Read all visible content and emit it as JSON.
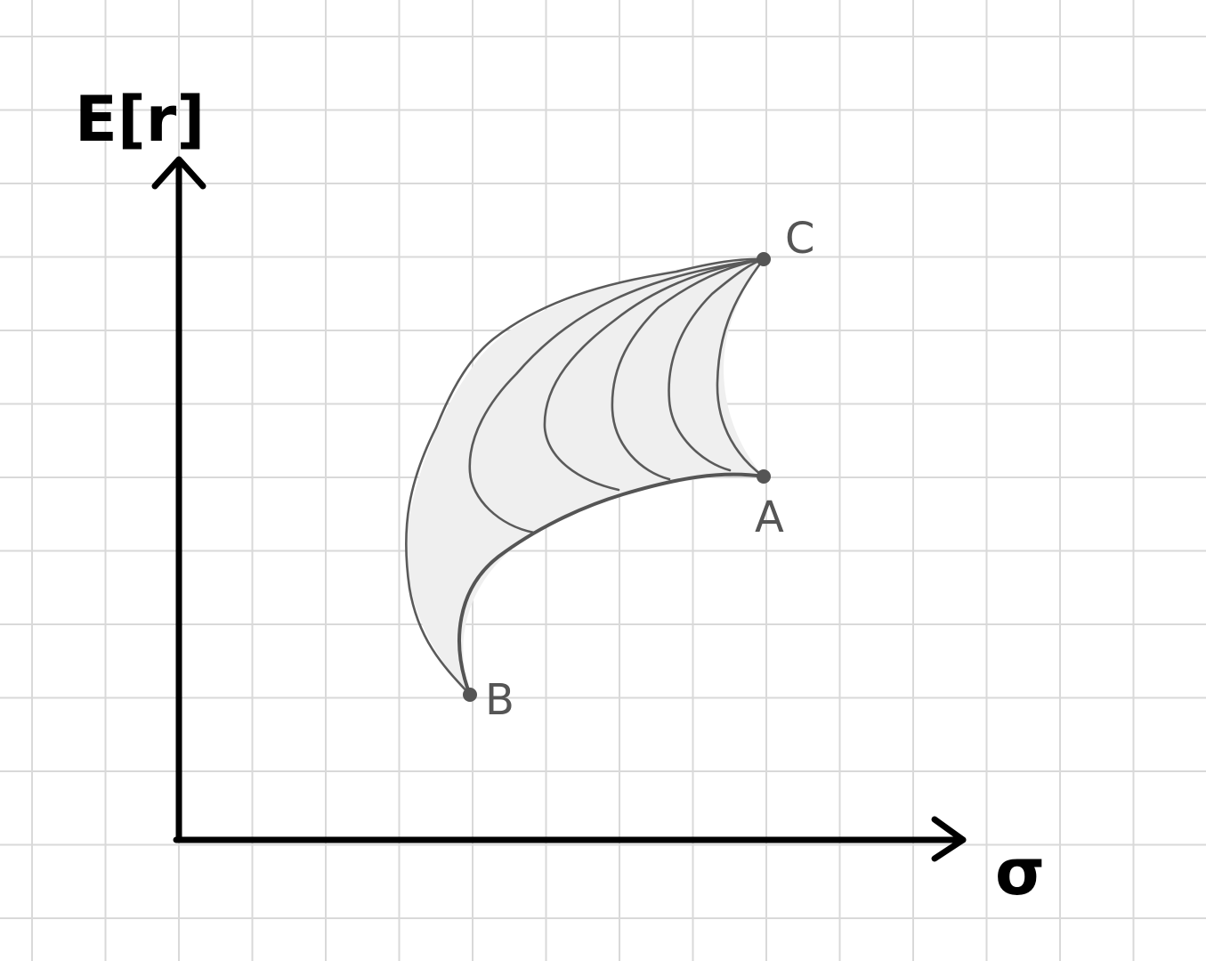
{
  "axes": {
    "y_label": "E[r]",
    "x_label": "σ"
  },
  "points": {
    "a_label": "A",
    "b_label": "B",
    "c_label": "C"
  },
  "colors": {
    "axis": "#000000",
    "curve": "#5a5a5a",
    "shade": "#efefef",
    "grid": "#d9d9d9",
    "point_label": "#555555"
  }
}
